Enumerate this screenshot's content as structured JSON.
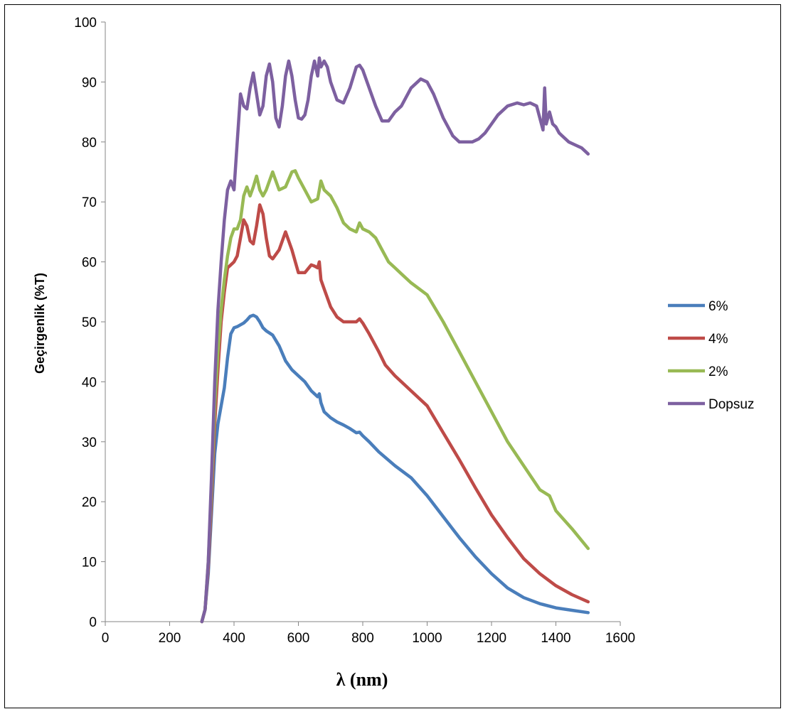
{
  "chart_data": {
    "type": "line",
    "title": "",
    "xlabel": "λ (nm)",
    "ylabel": "Geçirgenlik (%T)",
    "xlim": [
      0,
      1600
    ],
    "ylim": [
      0,
      100
    ],
    "xticks": [
      "0",
      "200",
      "400",
      "600",
      "800",
      "1000",
      "1200",
      "1400",
      "1600"
    ],
    "yticks": [
      "0",
      "10",
      "20",
      "30",
      "40",
      "50",
      "60",
      "70",
      "80",
      "90",
      "100"
    ],
    "grid": false,
    "legend": "right",
    "series": [
      {
        "name": "6%",
        "color": "#4a7ebb",
        "x": [
          300,
          310,
          320,
          330,
          340,
          350,
          360,
          370,
          380,
          390,
          400,
          410,
          420,
          430,
          440,
          450,
          460,
          470,
          480,
          490,
          500,
          520,
          540,
          560,
          580,
          600,
          620,
          640,
          660,
          665,
          670,
          680,
          700,
          720,
          740,
          760,
          780,
          790,
          800,
          820,
          850,
          900,
          950,
          1000,
          1050,
          1100,
          1150,
          1200,
          1250,
          1300,
          1350,
          1400,
          1450,
          1500
        ],
        "y": [
          0,
          2,
          8,
          18,
          28,
          33,
          36,
          39,
          44,
          48,
          49,
          49.2,
          49.5,
          49.8,
          50.3,
          50.9,
          51.1,
          50.8,
          50,
          49,
          48.5,
          47.8,
          46,
          43.5,
          42,
          41,
          40,
          38.5,
          37.5,
          38,
          36.5,
          35,
          34,
          33.3,
          32.8,
          32.2,
          31.5,
          31.6,
          31,
          30,
          28.3,
          26,
          24,
          21,
          17.5,
          14,
          10.8,
          8,
          5.6,
          4,
          3,
          2.3,
          1.9,
          1.5
        ]
      },
      {
        "name": "4%",
        "color": "#be4b48",
        "x": [
          300,
          310,
          320,
          330,
          340,
          350,
          360,
          370,
          380,
          390,
          400,
          410,
          420,
          430,
          440,
          450,
          460,
          470,
          480,
          490,
          500,
          510,
          520,
          540,
          560,
          580,
          600,
          620,
          640,
          650,
          660,
          665,
          670,
          680,
          700,
          720,
          740,
          760,
          780,
          790,
          800,
          820,
          850,
          870,
          900,
          920,
          950,
          1000,
          1050,
          1100,
          1150,
          1200,
          1250,
          1300,
          1350,
          1400,
          1450,
          1500
        ],
        "y": [
          0,
          2,
          9,
          20,
          33,
          42,
          50,
          55,
          59,
          59.5,
          60,
          61,
          64,
          67,
          66,
          63.5,
          63,
          66,
          69.5,
          68,
          64,
          61,
          60.5,
          62,
          65,
          62,
          58.2,
          58.2,
          59.5,
          59.3,
          59,
          60,
          57,
          55.5,
          52.5,
          50.8,
          50,
          50,
          50,
          50.5,
          49.8,
          48,
          45,
          42.8,
          41,
          40,
          38.5,
          36,
          31.5,
          27,
          22.3,
          17.8,
          14,
          10.5,
          8,
          6,
          4.5,
          3.3
        ]
      },
      {
        "name": "2%",
        "color": "#98b954",
        "x": [
          300,
          310,
          320,
          330,
          340,
          350,
          360,
          370,
          380,
          390,
          400,
          410,
          420,
          430,
          440,
          450,
          460,
          470,
          480,
          490,
          500,
          520,
          540,
          560,
          580,
          590,
          600,
          620,
          640,
          660,
          670,
          680,
          700,
          720,
          740,
          760,
          780,
          790,
          800,
          820,
          840,
          860,
          880,
          900,
          920,
          950,
          1000,
          1050,
          1100,
          1150,
          1200,
          1250,
          1300,
          1350,
          1380,
          1400,
          1450,
          1500
        ],
        "y": [
          0,
          2,
          10,
          22,
          36,
          45,
          52,
          57,
          61,
          64,
          65.5,
          65.5,
          67,
          71,
          72.5,
          71,
          72.5,
          74.3,
          72,
          71,
          72,
          75,
          72,
          72.5,
          75,
          75.2,
          74,
          72,
          70,
          70.5,
          73.5,
          72,
          71,
          69,
          66.5,
          65.5,
          65,
          66.5,
          65.5,
          65,
          64,
          62,
          60,
          59,
          58,
          56.5,
          54.5,
          50,
          45,
          40,
          35,
          30,
          26,
          22,
          21,
          18.5,
          15.5,
          12.2
        ]
      },
      {
        "name": "Dopsuz",
        "color": "#7d60a0",
        "x": [
          300,
          310,
          320,
          330,
          340,
          350,
          360,
          370,
          380,
          390,
          400,
          410,
          420,
          430,
          440,
          450,
          460,
          470,
          480,
          490,
          500,
          510,
          520,
          530,
          540,
          550,
          560,
          570,
          580,
          590,
          600,
          610,
          620,
          630,
          640,
          650,
          660,
          665,
          670,
          680,
          690,
          700,
          720,
          740,
          760,
          780,
          790,
          800,
          820,
          840,
          860,
          880,
          900,
          920,
          950,
          980,
          1000,
          1020,
          1050,
          1080,
          1100,
          1120,
          1140,
          1160,
          1180,
          1200,
          1220,
          1250,
          1280,
          1300,
          1320,
          1340,
          1360,
          1365,
          1370,
          1380,
          1390,
          1400,
          1410,
          1420,
          1440,
          1460,
          1480,
          1500
        ],
        "y": [
          0,
          2,
          10,
          24,
          40,
          52,
          60,
          67,
          72,
          73.5,
          72,
          80,
          88,
          86,
          85.5,
          89,
          91.5,
          88,
          84.5,
          86,
          91,
          93,
          90,
          84,
          82.5,
          86,
          91,
          93.5,
          91,
          87,
          84,
          83.8,
          84.5,
          87,
          91,
          93.5,
          91,
          94,
          92.5,
          93.5,
          92.5,
          90,
          87,
          86.5,
          89,
          92.5,
          92.8,
          92,
          89,
          86,
          83.5,
          83.5,
          85,
          86,
          89,
          90.5,
          90,
          88,
          84,
          81,
          80,
          80,
          80,
          80.5,
          81.5,
          83,
          84.5,
          86,
          86.5,
          86.2,
          86.5,
          86,
          82,
          89,
          83,
          85,
          83,
          82.5,
          81.5,
          81,
          80,
          79.5,
          79,
          78
        ]
      }
    ]
  }
}
